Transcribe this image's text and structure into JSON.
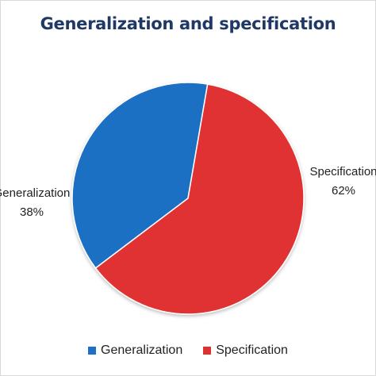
{
  "chart_data": {
    "type": "pie",
    "title": "Generalization and specification",
    "categories": [
      "Generalization",
      "Specification"
    ],
    "values": [
      38,
      62
    ],
    "labels": [
      {
        "name": "Generalization",
        "text": "Generalization",
        "percent": "38%"
      },
      {
        "name": "Specification",
        "text": "Specification",
        "percent": "62%"
      }
    ],
    "colors": [
      "#1f6fc4",
      "#e03131"
    ],
    "legend": {
      "position": "bottom",
      "items": [
        "Generalization",
        "Specification"
      ]
    }
  }
}
